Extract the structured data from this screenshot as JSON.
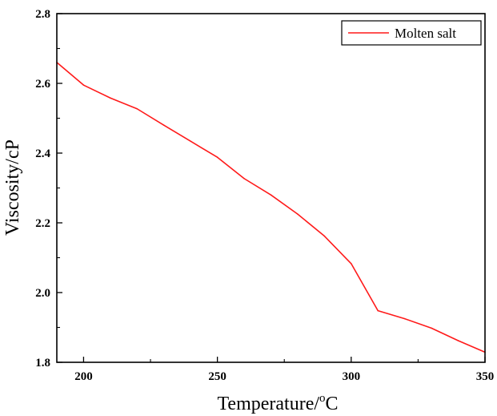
{
  "chart_data": {
    "type": "line",
    "title": "",
    "xlabel_main": "Temperature/",
    "xlabel_sup": "o",
    "xlabel_tail": "C",
    "ylabel": "Viscosity/cP",
    "xlim": [
      190,
      350
    ],
    "ylim": [
      1.8,
      2.8
    ],
    "x_ticks": [
      200,
      250,
      300,
      350
    ],
    "x_tick_labels": [
      "200",
      "250",
      "300",
      "350"
    ],
    "y_ticks": [
      1.8,
      2.0,
      2.2,
      2.4,
      2.6,
      2.8
    ],
    "y_tick_labels": [
      "1.8",
      "2.0",
      "2.2",
      "2.4",
      "2.6",
      "2.8"
    ],
    "x_minor_step": 25,
    "y_minor_step": 0.1,
    "grid": false,
    "legend_position": "top-right",
    "series": [
      {
        "name": "Molten salt",
        "color": "#ff1a1a",
        "x": [
          190,
          200,
          210,
          220,
          230,
          240,
          250,
          260,
          270,
          280,
          290,
          300,
          310,
          320,
          330,
          340,
          350
        ],
        "y": [
          2.66,
          2.595,
          2.558,
          2.527,
          2.48,
          2.434,
          2.388,
          2.327,
          2.28,
          2.225,
          2.162,
          2.083,
          1.948,
          1.925,
          1.898,
          1.862,
          1.829
        ]
      }
    ]
  }
}
